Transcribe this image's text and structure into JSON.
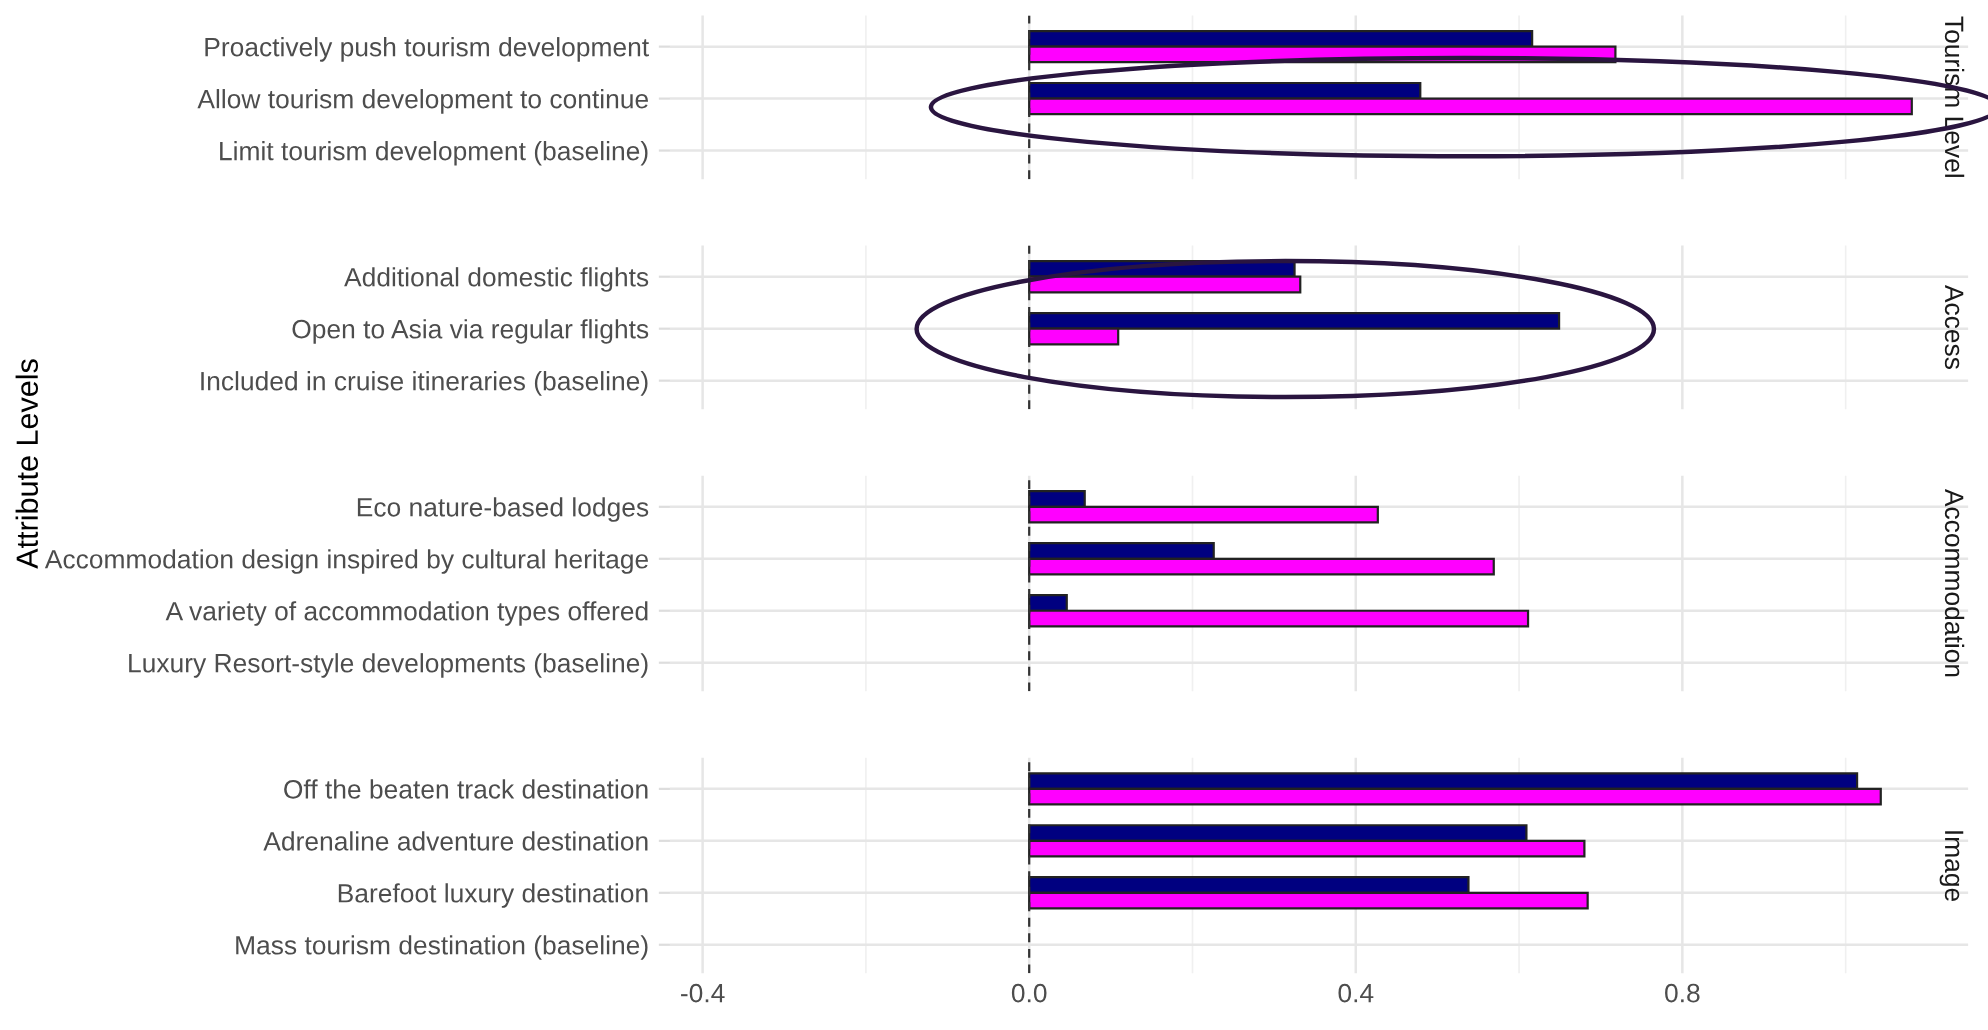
{
  "chart_data": [
    {
      "type": "bar",
      "orientation": "horizontal",
      "title": "Tourism Level",
      "ylabel": "Attribute Levels",
      "categories": [
        "Proactively push tourism development",
        "Allow tourism development to continue",
        "Limit tourism development (baseline)"
      ],
      "series": [
        {
          "color": "#000080",
          "values": [
            0.616,
            0.479,
            null
          ]
        },
        {
          "color": "#ff00ff",
          "values": [
            0.718,
            1.081,
            null
          ]
        }
      ],
      "xlim": [
        -0.44,
        1.15
      ],
      "xticks": [
        -0.4,
        0.0,
        0.4,
        0.8
      ],
      "grid": true,
      "tick_labels": "y",
      "ref_lines": [
        {
          "axis": "x",
          "value": 0,
          "line_style": "dashed",
          "color": "#333333"
        }
      ]
    },
    {
      "type": "bar",
      "orientation": "horizontal",
      "title": "Access",
      "categories": [
        "Additional domestic flights",
        "Open to Asia via regular flights",
        "Included in cruise itineraries (baseline)"
      ],
      "series": [
        {
          "color": "#000080",
          "values": [
            0.325,
            0.649,
            null
          ]
        },
        {
          "color": "#ff00ff",
          "values": [
            0.332,
            0.109,
            null
          ]
        }
      ],
      "xlim": [
        -0.44,
        1.15
      ],
      "xticks": [
        -0.4,
        0.0,
        0.4,
        0.8
      ],
      "grid": true,
      "tick_labels": "y",
      "ref_lines": [
        {
          "axis": "x",
          "value": 0,
          "line_style": "dashed",
          "color": "#333333"
        }
      ]
    },
    {
      "type": "bar",
      "orientation": "horizontal",
      "title": "Accommodation",
      "categories": [
        "Eco nature-based lodges",
        "Accommodation design inspired by cultural heritage",
        "A variety of accommodation types offered",
        "Luxury Resort-style developments (baseline)"
      ],
      "series": [
        {
          "color": "#000080",
          "values": [
            0.068,
            0.226,
            0.046,
            null
          ]
        },
        {
          "color": "#ff00ff",
          "values": [
            0.427,
            0.569,
            0.611,
            null
          ]
        }
      ],
      "xlim": [
        -0.44,
        1.15
      ],
      "xticks": [
        -0.4,
        0.0,
        0.4,
        0.8
      ],
      "grid": true,
      "tick_labels": "y",
      "ref_lines": [
        {
          "axis": "x",
          "value": 0,
          "line_style": "dashed",
          "color": "#333333"
        }
      ]
    },
    {
      "type": "bar",
      "orientation": "horizontal",
      "title": "Image",
      "categories": [
        "Off the beaten track destination",
        "Adrenaline adventure destination",
        "Barefoot luxury destination",
        "Mass tourism destination (baseline)"
      ],
      "series": [
        {
          "color": "#000080",
          "values": [
            1.014,
            0.609,
            0.538,
            null
          ]
        },
        {
          "color": "#ff00ff",
          "values": [
            1.043,
            0.68,
            0.684,
            null
          ]
        }
      ],
      "xlim": [
        -0.44,
        1.15
      ],
      "xticks": [
        -0.4,
        {
          "value": 0,
          "label": "0.0"
        },
        0.4,
        0.8
      ],
      "grid": true,
      "ref_lines": [
        {
          "axis": "x",
          "value": 0,
          "line_style": "dashed",
          "color": "#333333"
        }
      ]
    }
  ]
}
